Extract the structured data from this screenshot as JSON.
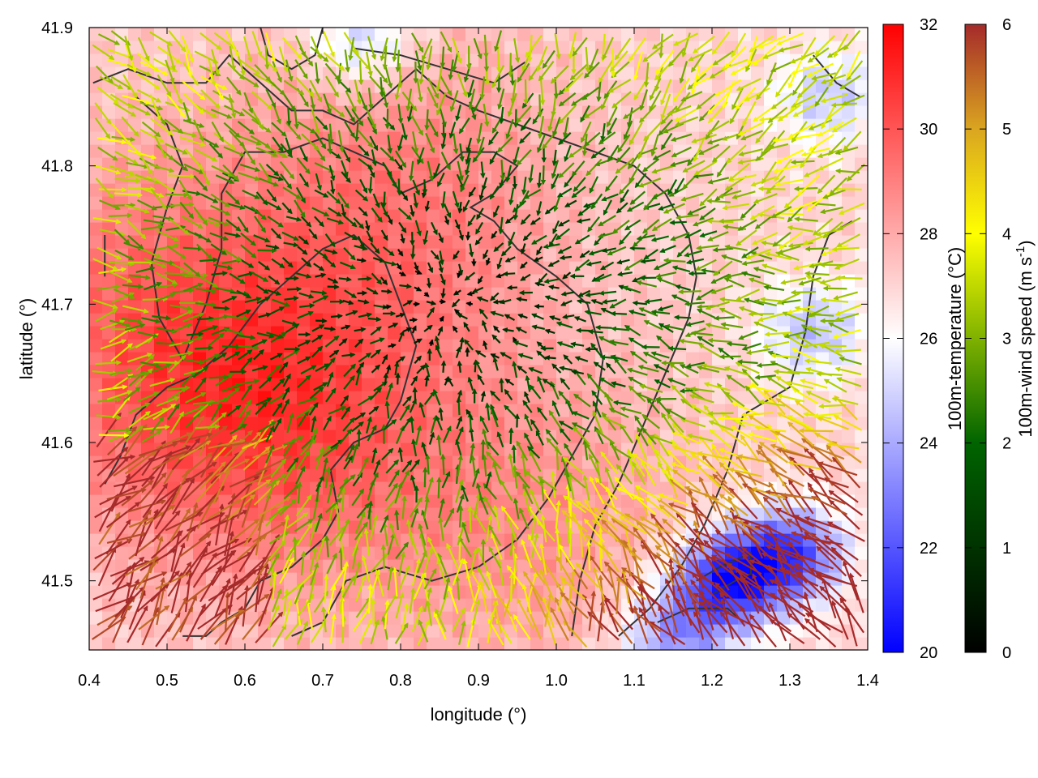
{
  "chart_data": {
    "type": "heatmap",
    "subtype": "temperature field with wind vectors and contour lines",
    "xlabel": "longitude (°)",
    "ylabel": "latitude (°)",
    "xlim": [
      0.4,
      1.4
    ],
    "ylim": [
      41.45,
      41.9
    ],
    "x_ticks": [
      "0.4",
      "0.5",
      "0.6",
      "0.7",
      "0.8",
      "0.9",
      "1.0",
      "1.1",
      "1.2",
      "1.3",
      "1.4"
    ],
    "x_tick_values": [
      0.4,
      0.5,
      0.6,
      0.7,
      0.8,
      0.9,
      1.0,
      1.1,
      1.2,
      1.3,
      1.4
    ],
    "y_ticks": [
      "41.5",
      "41.6",
      "41.7",
      "41.8",
      "41.9"
    ],
    "y_tick_values": [
      41.5,
      41.6,
      41.7,
      41.8,
      41.9
    ],
    "temperature_colorbar": {
      "label": "100m-temperature (°C)",
      "range": [
        20,
        32
      ],
      "ticks": [
        "20",
        "22",
        "24",
        "26",
        "28",
        "30",
        "32"
      ],
      "tick_values": [
        20,
        22,
        24,
        26,
        28,
        30,
        32
      ],
      "colors": [
        "#0000ff",
        "#ffffff",
        "#ff0000"
      ],
      "color_mid_value": 26
    },
    "wind_colorbar": {
      "label_main": "100m-wind speed (m s",
      "label_sup": "-1",
      "label_end": ")",
      "range": [
        0,
        6
      ],
      "ticks": [
        "0",
        "1",
        "2",
        "3",
        "4",
        "5",
        "6"
      ],
      "tick_values": [
        0,
        1,
        2,
        3,
        4,
        5,
        6
      ],
      "colors": [
        "#000000",
        "#006400",
        "#ffff00",
        "#daa520",
        "#a52a2a"
      ],
      "color_stops": [
        0,
        2,
        4,
        5,
        6
      ]
    },
    "temperature_field": {
      "description_free": true,
      "warm_centers": [
        {
          "lon": 0.62,
          "lat": 41.62,
          "t": 30.2
        },
        {
          "lon": 0.8,
          "lat": 41.78,
          "t": 29.0
        },
        {
          "lon": 0.45,
          "lat": 41.7,
          "t": 28.8
        },
        {
          "lon": 0.95,
          "lat": 41.55,
          "t": 28.5
        }
      ],
      "cool_centers": [
        {
          "lon": 1.22,
          "lat": 41.5,
          "t": 21.0
        },
        {
          "lon": 1.3,
          "lat": 41.52,
          "t": 21.8
        },
        {
          "lon": 0.75,
          "lat": 41.89,
          "t": 24.5
        },
        {
          "lon": 1.35,
          "lat": 41.85,
          "t": 24.8
        },
        {
          "lon": 1.33,
          "lat": 41.68,
          "t": 24.5
        },
        {
          "lon": 1.15,
          "lat": 41.46,
          "t": 23.5
        }
      ],
      "background_t": 27.0
    },
    "wind_field": {
      "convergence_center": {
        "lon": 0.86,
        "lat": 41.7
      },
      "strong_wind_region": "south-east",
      "typical_speed_ne": 4.0,
      "max_speed": 6
    },
    "contours": [
      [
        [
          0.405,
          41.86
        ],
        [
          0.45,
          41.87
        ],
        [
          0.5,
          41.86
        ],
        [
          0.55,
          41.86
        ],
        [
          0.58,
          41.88
        ],
        [
          0.62,
          41.86
        ],
        [
          0.66,
          41.84
        ],
        [
          0.7,
          41.84
        ],
        [
          0.74,
          41.83
        ],
        [
          0.78,
          41.85
        ],
        [
          0.82,
          41.87
        ],
        [
          0.86,
          41.85
        ],
        [
          0.9,
          41.84
        ],
        [
          0.95,
          41.83
        ],
        [
          1.0,
          41.82
        ],
        [
          1.05,
          41.81
        ],
        [
          1.1,
          41.8
        ],
        [
          1.14,
          41.78
        ],
        [
          1.17,
          41.75
        ],
        [
          1.18,
          41.72
        ],
        [
          1.17,
          41.69
        ],
        [
          1.14,
          41.65
        ],
        [
          1.11,
          41.61
        ],
        [
          1.08,
          41.57
        ],
        [
          1.05,
          41.54
        ],
        [
          1.03,
          41.5
        ],
        [
          1.02,
          41.46
        ]
      ],
      [
        [
          0.46,
          41.85
        ],
        [
          0.5,
          41.83
        ],
        [
          0.52,
          41.8
        ],
        [
          0.5,
          41.77
        ],
        [
          0.48,
          41.73
        ],
        [
          0.49,
          41.69
        ],
        [
          0.52,
          41.66
        ],
        [
          0.55,
          41.7
        ],
        [
          0.57,
          41.74
        ],
        [
          0.57,
          41.78
        ],
        [
          0.6,
          41.81
        ],
        [
          0.65,
          41.81
        ],
        [
          0.7,
          41.82
        ],
        [
          0.74,
          41.81
        ],
        [
          0.78,
          41.8
        ],
        [
          0.8,
          41.78
        ],
        [
          0.84,
          41.79
        ],
        [
          0.88,
          41.81
        ],
        [
          0.92,
          41.81
        ],
        [
          0.95,
          41.8
        ],
        [
          0.92,
          41.78
        ],
        [
          0.89,
          41.77
        ],
        [
          0.92,
          41.76
        ],
        [
          0.95,
          41.74
        ],
        [
          1.0,
          41.72
        ],
        [
          1.04,
          41.7
        ],
        [
          1.06,
          41.66
        ],
        [
          1.05,
          41.62
        ],
        [
          1.02,
          41.59
        ],
        [
          0.99,
          41.56
        ],
        [
          0.95,
          41.53
        ],
        [
          0.9,
          41.51
        ],
        [
          0.84,
          41.5
        ],
        [
          0.78,
          41.51
        ],
        [
          0.73,
          41.5
        ],
        [
          0.7,
          41.47
        ],
        [
          0.66,
          41.46
        ]
      ],
      [
        [
          0.42,
          41.57
        ],
        [
          0.44,
          41.59
        ],
        [
          0.46,
          41.62
        ],
        [
          0.5,
          41.64
        ],
        [
          0.54,
          41.65
        ],
        [
          0.58,
          41.67
        ],
        [
          0.62,
          41.7
        ],
        [
          0.66,
          41.72
        ],
        [
          0.7,
          41.74
        ],
        [
          0.74,
          41.75
        ],
        [
          0.78,
          41.73
        ],
        [
          0.8,
          41.7
        ],
        [
          0.82,
          41.67
        ],
        [
          0.8,
          41.63
        ],
        [
          0.78,
          41.61
        ],
        [
          0.74,
          41.6
        ],
        [
          0.71,
          41.58
        ],
        [
          0.72,
          41.55
        ],
        [
          0.7,
          41.53
        ],
        [
          0.66,
          41.51
        ],
        [
          0.62,
          41.5
        ],
        [
          0.6,
          41.48
        ],
        [
          0.57,
          41.47
        ],
        [
          0.55,
          41.46
        ],
        [
          0.52,
          41.46
        ]
      ],
      [
        [
          0.42,
          41.75
        ],
        [
          0.42,
          41.72
        ]
      ],
      [
        [
          1.08,
          41.46
        ],
        [
          1.12,
          41.48
        ],
        [
          1.16,
          41.51
        ],
        [
          1.19,
          41.54
        ],
        [
          1.22,
          41.58
        ],
        [
          1.24,
          41.62
        ],
        [
          1.27,
          41.63
        ],
        [
          1.3,
          41.64
        ],
        [
          1.32,
          41.68
        ],
        [
          1.33,
          41.72
        ],
        [
          1.35,
          41.75
        ],
        [
          1.38,
          41.76
        ]
      ],
      [
        [
          1.18,
          41.5
        ],
        [
          1.21,
          41.51
        ],
        [
          1.25,
          41.52
        ],
        [
          1.25,
          41.505
        ],
        [
          1.23,
          41.5
        ],
        [
          1.2,
          41.49
        ]
      ],
      [
        [
          1.13,
          41.47
        ],
        [
          1.17,
          41.48
        ],
        [
          1.22,
          41.48
        ],
        [
          1.24,
          41.47
        ]
      ],
      [
        [
          0.74,
          41.885
        ],
        [
          0.8,
          41.88
        ],
        [
          0.86,
          41.87
        ],
        [
          0.92,
          41.86
        ],
        [
          0.96,
          41.875
        ]
      ],
      [
        [
          0.62,
          41.9
        ],
        [
          0.63,
          41.88
        ],
        [
          0.66,
          41.87
        ],
        [
          0.69,
          41.88
        ],
        [
          0.7,
          41.9
        ]
      ],
      [
        [
          1.33,
          41.88
        ],
        [
          1.36,
          41.86
        ],
        [
          1.39,
          41.85
        ]
      ]
    ]
  }
}
